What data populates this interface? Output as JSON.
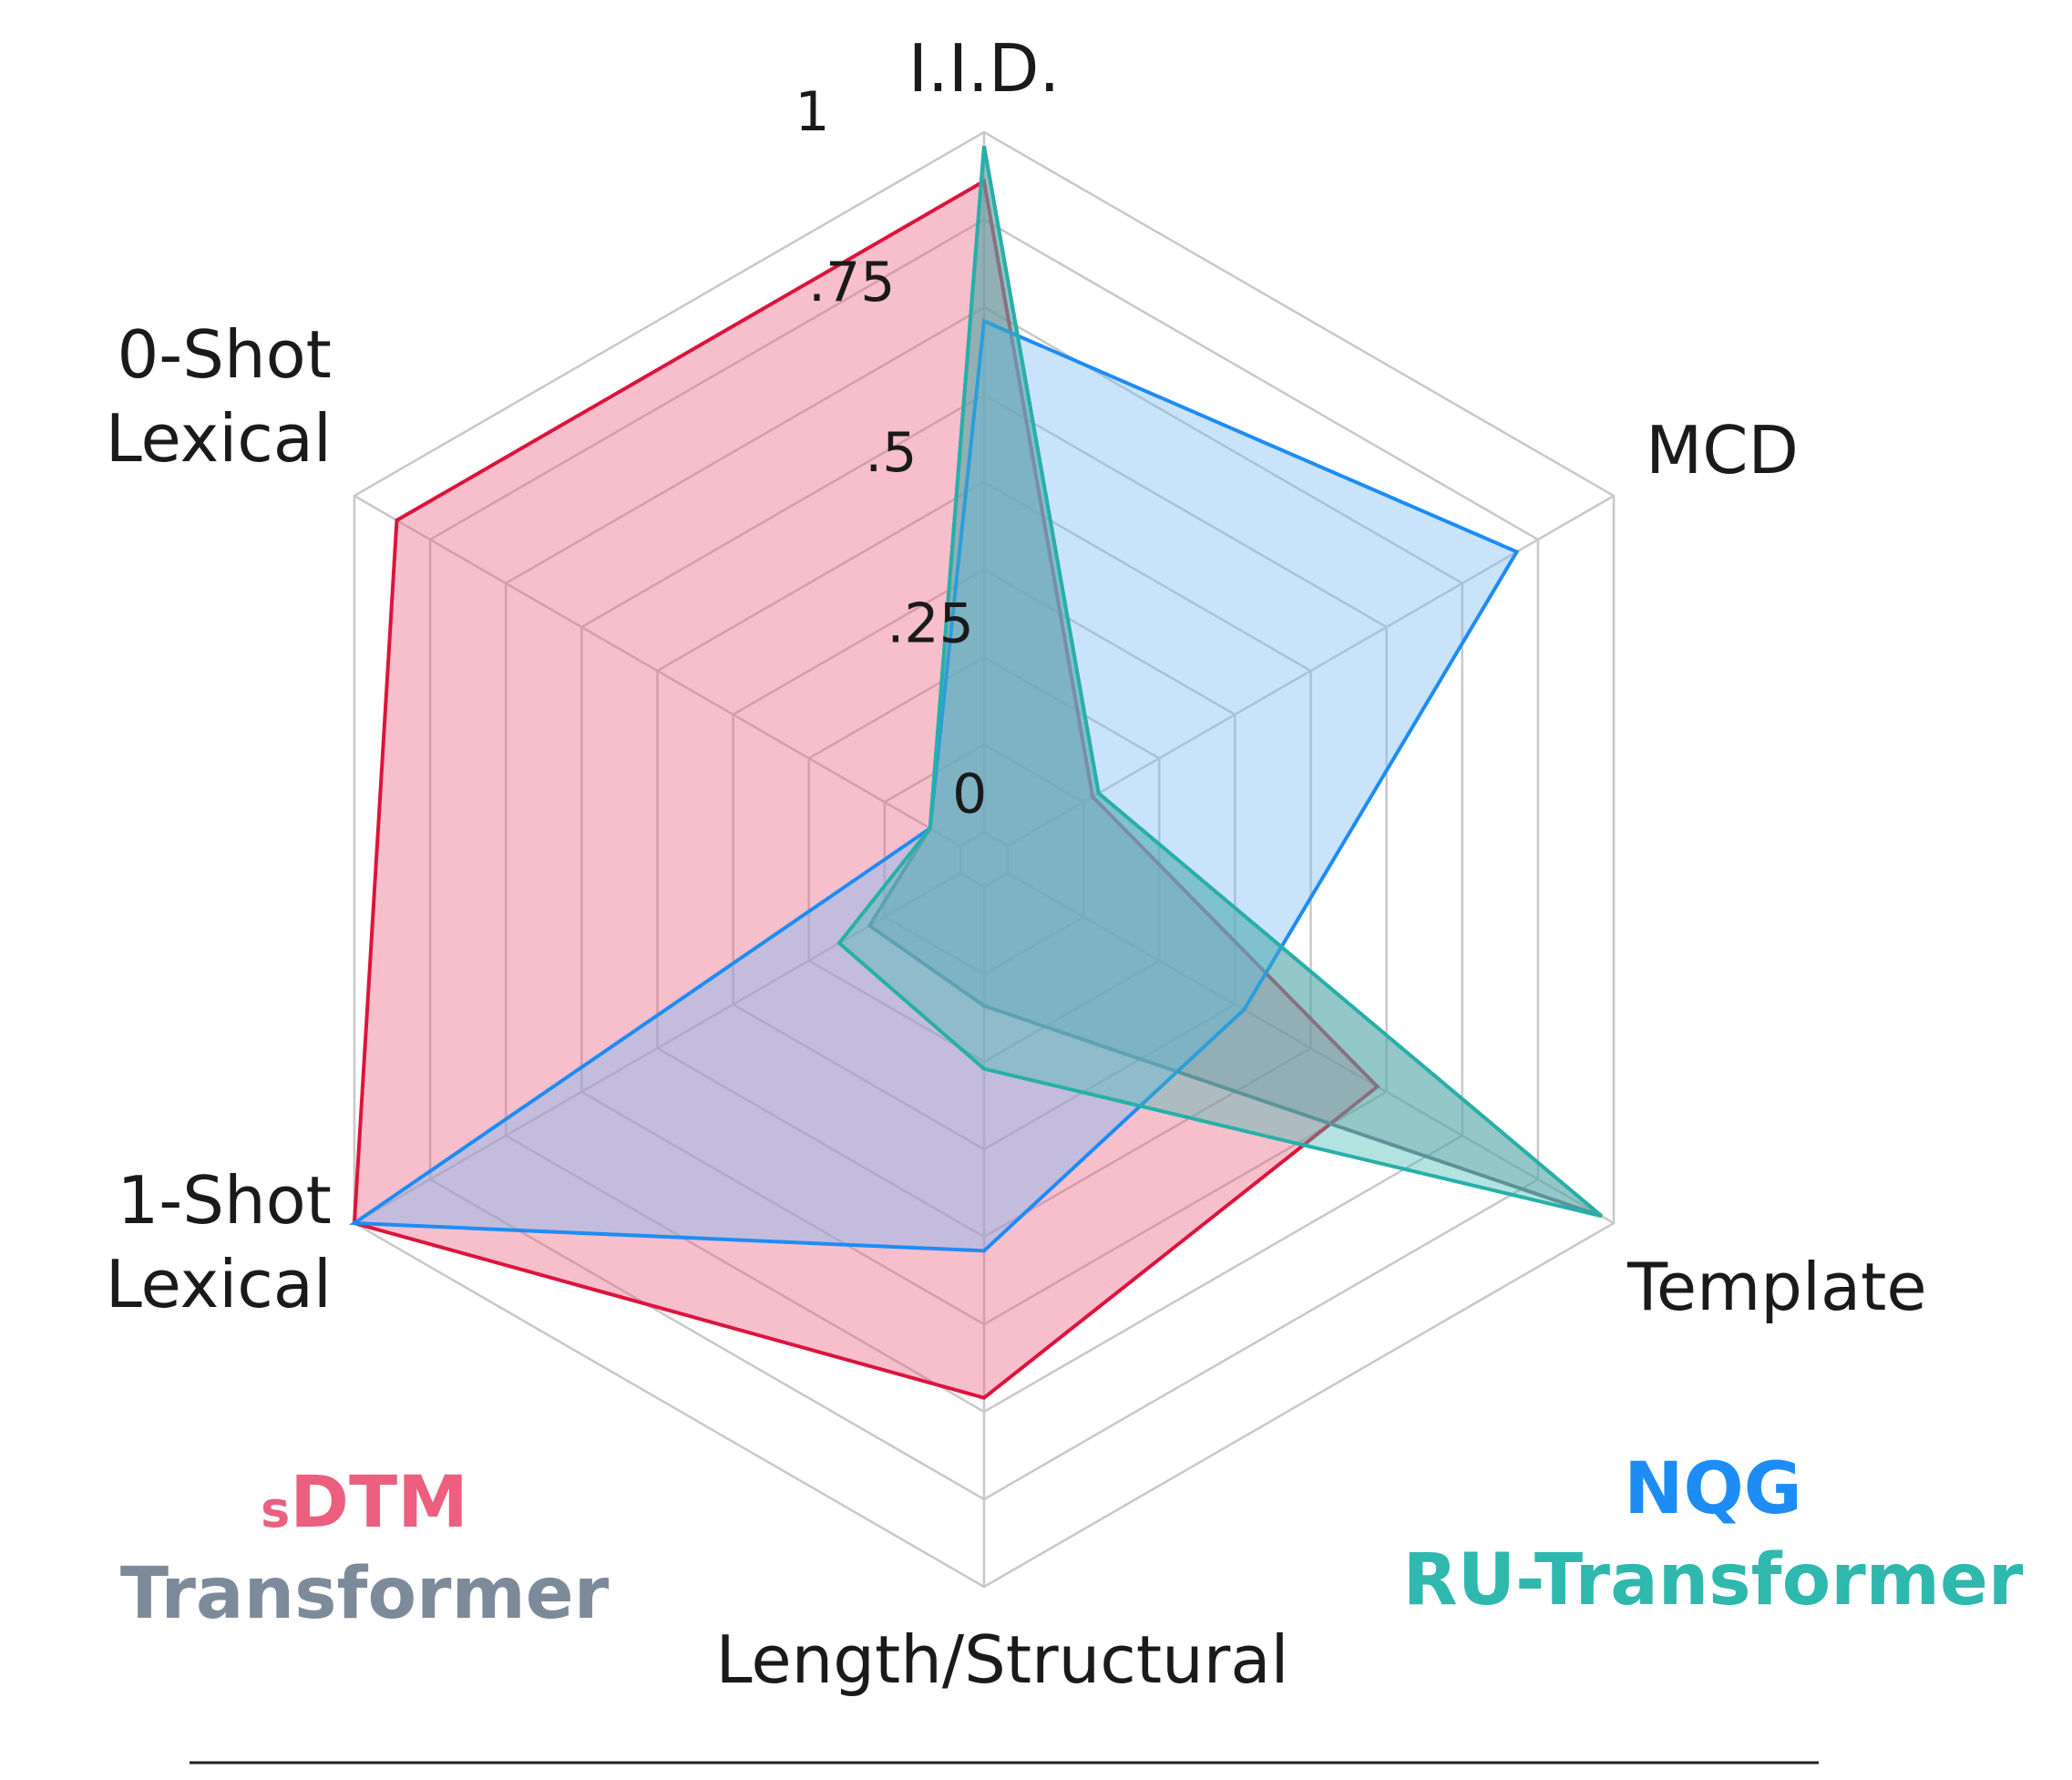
{
  "chart_data": {
    "type": "radar",
    "axes": [
      "I.I.D.",
      "MCD",
      "Template",
      "Length/Structural",
      "1-Shot Lexical",
      "0-Shot Lexical"
    ],
    "axis_label_lines": [
      [
        "I.I.D."
      ],
      [
        "MCD"
      ],
      [
        "Template"
      ],
      [
        "Length/Structural"
      ],
      [
        "1-Shot",
        "Lexical"
      ],
      [
        "0-Shot",
        "Lexical"
      ]
    ],
    "r_ticks": [
      0,
      0.25,
      0.5,
      0.75,
      1
    ],
    "r_tick_labels": [
      "0",
      ".25",
      ".5",
      ".75",
      "1"
    ],
    "r_range": [
      0,
      1
    ],
    "grid": true,
    "series": [
      {
        "name": "sDTM",
        "legend_prefix": "s",
        "legend_main": "DTM",
        "color": "#dc143c",
        "fill": "#ec5f7f",
        "values": [
          0.93,
          0.14,
          0.61,
          0.73,
          1.0,
          0.93
        ]
      },
      {
        "name": "Transformer",
        "color": "#6f7b88",
        "fill": "#7d8a99",
        "values": [
          0.98,
          0.15,
          0.98,
          0.17,
          0.15,
          0.05
        ]
      },
      {
        "name": "NQG",
        "color": "#1e8cf5",
        "fill": "#77b8f4",
        "values": [
          0.73,
          0.84,
          0.39,
          0.52,
          1.0,
          0.05
        ]
      },
      {
        "name": "RU-Transformer",
        "color": "#26b0a8",
        "fill": "#40bab1",
        "values": [
          0.98,
          0.15,
          0.98,
          0.26,
          0.2,
          0.05
        ]
      }
    ],
    "legend": {
      "left": [
        "sDTM",
        "Transformer"
      ],
      "right": [
        "NQG",
        "RU-Transformer"
      ]
    }
  }
}
